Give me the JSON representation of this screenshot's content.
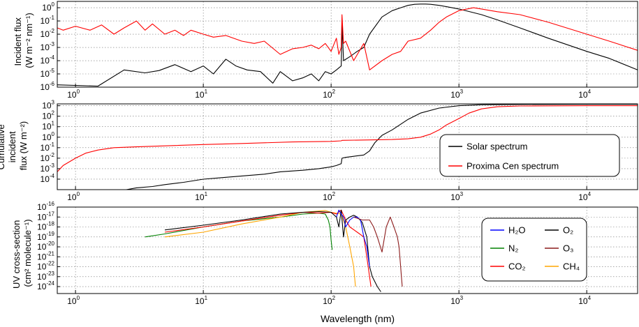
{
  "x_axis": {
    "label": "Wavelength (nm)",
    "scale": "log",
    "xlim": [
      0.72,
      25000
    ],
    "ticks": [
      1,
      10,
      100,
      1000,
      10000
    ],
    "tick_labels": [
      {
        "base": "10",
        "exp": "0"
      },
      {
        "base": "10",
        "exp": "1"
      },
      {
        "base": "10",
        "exp": "2"
      },
      {
        "base": "10",
        "exp": "3"
      },
      {
        "base": "10",
        "exp": "4"
      }
    ]
  },
  "chart_data": [
    {
      "type": "line",
      "ylabel": [
        "Incident flux",
        "(W m⁻² nm⁻¹)"
      ],
      "yscale": "log",
      "ylim": [
        1e-06,
        3
      ],
      "grid": true,
      "yticks": [
        {
          "v": 1,
          "exp": "0"
        },
        {
          "v": 0.1,
          "exp": "-1"
        },
        {
          "v": 0.01,
          "exp": "-2"
        },
        {
          "v": 0.001,
          "exp": "-3"
        },
        {
          "v": 0.0001,
          "exp": "-4"
        },
        {
          "v": 1e-05,
          "exp": "-5"
        },
        {
          "v": 1e-06,
          "exp": "-6"
        }
      ],
      "series": [
        {
          "key": "solar",
          "color": "#000000",
          "x": [
            0.72,
            1.5,
            2.4,
            3.5,
            4.5,
            6,
            8,
            10,
            12,
            15,
            18,
            22,
            28,
            35,
            40,
            50,
            60,
            70,
            80,
            90,
            100,
            110,
            120,
            122,
            125,
            140,
            160,
            180,
            200,
            250,
            300,
            350,
            400,
            450,
            500,
            550,
            600,
            700,
            800,
            1000,
            1500,
            2000,
            3000,
            5000,
            10000,
            15000,
            25000
          ],
          "y": [
            1.5e-06,
            1.2e-06,
            2e-05,
            1.2e-05,
            1.8e-05,
            5e-05,
            1.5e-05,
            4e-05,
            1e-05,
            0.00013,
            4e-05,
            2e-05,
            1.5e-05,
            2e-06,
            1.5e-05,
            3e-06,
            5e-06,
            1e-05,
            3e-06,
            1.5e-05,
            1e-05,
            2e-05,
            4e-05,
            0.05,
            0.0001,
            0.0002,
            0.0005,
            0.001,
            0.01,
            0.2,
            0.6,
            1.0,
            1.5,
            1.8,
            1.9,
            1.9,
            1.8,
            1.5,
            1.2,
            0.8,
            0.3,
            0.12,
            0.03,
            0.005,
            0.0005,
            0.00015,
            2e-05
          ]
        },
        {
          "key": "proxima",
          "color": "#ff0000",
          "x": [
            0.72,
            0.8,
            1,
            1.3,
            1.6,
            2,
            2.4,
            3,
            3.5,
            4,
            5,
            6,
            7,
            8,
            10,
            12,
            15,
            20,
            25,
            30,
            40,
            50,
            60,
            70,
            80,
            90,
            100,
            110,
            115,
            120,
            121.6,
            125,
            130,
            150,
            180,
            200,
            250,
            300,
            350,
            400,
            500,
            600,
            700,
            800,
            1000,
            1300,
            1500,
            2000,
            3000,
            5000,
            10000,
            15000,
            25000
          ],
          "y": [
            0.03,
            0.02,
            0.04,
            0.02,
            0.05,
            0.01,
            0.03,
            0.1,
            0.02,
            0.06,
            0.01,
            0.02,
            0.008,
            0.02,
            0.01,
            0.006,
            0.008,
            0.003,
            0.002,
            0.003,
            0.0003,
            0.0008,
            0.001,
            0.0015,
            0.0008,
            0.002,
            0.0005,
            0.005,
            0.0003,
            0.001,
            0.3,
            0.002,
            0.003,
            0.0001,
            0.002,
            2e-05,
            0.0001,
            0.0003,
            0.0005,
            0.003,
            0.005,
            0.02,
            0.08,
            0.2,
            0.6,
            1.0,
            0.8,
            0.5,
            0.3,
            0.08,
            0.01,
            0.003,
            0.0006
          ]
        }
      ]
    },
    {
      "type": "line",
      "ylabel": [
        "Cumulative",
        "incident",
        "flux (W m⁻²)"
      ],
      "yscale": "log",
      "ylim": [
        1e-05,
        1500
      ],
      "grid": true,
      "yticks": [
        {
          "v": 1000,
          "exp": "3"
        },
        {
          "v": 100,
          "exp": "2"
        },
        {
          "v": 10,
          "exp": "1"
        },
        {
          "v": 1,
          "exp": "0"
        },
        {
          "v": 0.1,
          "exp": "-1"
        },
        {
          "v": 0.01,
          "exp": "-2"
        },
        {
          "v": 0.001,
          "exp": "-3"
        },
        {
          "v": 0.0001,
          "exp": "-4"
        }
      ],
      "legend": {
        "position": "center-right",
        "entries": [
          {
            "label": "Solar spectrum",
            "color": "#000000"
          },
          {
            "label": "Proxima Cen spectrum",
            "color": "#ff0000"
          }
        ]
      },
      "series": [
        {
          "key": "solar_cum",
          "color": "#000000",
          "x": [
            2.5,
            3,
            4,
            5,
            7,
            10,
            15,
            20,
            30,
            40,
            60,
            80,
            100,
            110,
            120,
            121.6,
            130,
            150,
            180,
            200,
            220,
            250,
            300,
            400,
            500,
            700,
            1000,
            1500,
            3000,
            10000,
            25000
          ],
          "y": [
            1e-05,
            1.5e-05,
            2e-05,
            3e-05,
            5e-05,
            0.0001,
            0.00015,
            0.0002,
            0.0003,
            0.0005,
            0.0007,
            0.001,
            0.0015,
            0.002,
            0.003,
            0.01,
            0.012,
            0.015,
            0.02,
            0.05,
            0.3,
            1.5,
            5,
            50,
            200,
            600,
            1000,
            1250,
            1330,
            1360,
            1361
          ]
        },
        {
          "key": "proxima_cum",
          "color": "#ff0000",
          "x": [
            0.72,
            0.8,
            1,
            1.2,
            1.5,
            2,
            3,
            5,
            10,
            20,
            50,
            100,
            120,
            121.6,
            200,
            300,
            400,
            500,
            600,
            700,
            800,
            1000,
            1200,
            1500,
            2000,
            3000,
            10000,
            25000
          ],
          "y": [
            0.0005,
            0.002,
            0.01,
            0.03,
            0.06,
            0.1,
            0.12,
            0.15,
            0.2,
            0.25,
            0.35,
            0.4,
            0.45,
            0.5,
            0.55,
            0.6,
            0.7,
            1.0,
            2,
            5,
            15,
            60,
            200,
            500,
            800,
            950,
            1000,
            1000
          ]
        }
      ]
    },
    {
      "type": "line",
      "ylabel": [
        "UV cross-section",
        "(cm² molecule⁻¹)"
      ],
      "yscale": "log",
      "ylim": [
        2e-25,
        1e-16
      ],
      "grid": true,
      "yticks": [
        {
          "v": 1e-16,
          "exp": "-16"
        },
        {
          "v": 1e-17,
          "exp": "-17"
        },
        {
          "v": 1e-18,
          "exp": "-18"
        },
        {
          "v": 1e-19,
          "exp": "-19"
        },
        {
          "v": 1e-20,
          "exp": "-20"
        },
        {
          "v": 1e-21,
          "exp": "-21"
        },
        {
          "v": 1e-22,
          "exp": "-22"
        },
        {
          "v": 1e-23,
          "exp": "-23"
        },
        {
          "v": 1e-24,
          "exp": "-24"
        }
      ],
      "legend": {
        "position": "right",
        "entries": [
          {
            "label": "H₂O",
            "color": "#0000ff"
          },
          {
            "label": "O₂",
            "color": "#000000"
          },
          {
            "label": "N₂",
            "color": "#008000"
          },
          {
            "label": "O₃",
            "color": "#8b1a1a"
          },
          {
            "label": "CO₂",
            "color": "#ff0000"
          },
          {
            "label": "CH₄",
            "color": "#ffa500"
          }
        ]
      },
      "series": [
        {
          "key": "N2",
          "color": "#008000",
          "x": [
            3.5,
            5,
            10,
            20,
            40,
            60,
            80,
            90,
            95,
            98,
            100,
            102
          ],
          "y": [
            1e-19,
            2e-19,
            1e-18,
            4e-18,
            1e-17,
            2e-17,
            2.5e-17,
            2e-17,
            5e-18,
            1e-18,
            5e-20,
            5e-21
          ]
        },
        {
          "key": "CH4",
          "color": "#ffa500",
          "x": [
            5,
            10,
            20,
            40,
            60,
            80,
            90,
            100,
            120,
            130,
            140,
            150,
            155
          ],
          "y": [
            1e-19,
            3e-19,
            2e-18,
            1e-17,
            3e-17,
            4e-17,
            4.5e-17,
            3e-17,
            2e-17,
            1e-18,
            1e-20,
            1e-22,
            1e-24
          ]
        },
        {
          "key": "CO2",
          "color": "#ff0000",
          "x": [
            5,
            10,
            20,
            40,
            60,
            80,
            100,
            110,
            120,
            130,
            140,
            160,
            180,
            190,
            200,
            205
          ],
          "y": [
            3e-19,
            1e-18,
            4e-18,
            1.5e-17,
            3e-17,
            2.5e-17,
            3e-17,
            2e-17,
            5e-17,
            5e-18,
            1e-18,
            3e-19,
            1e-19,
            1e-21,
            1e-23,
            1e-24
          ]
        },
        {
          "key": "O2",
          "color": "#000000",
          "x": [
            5,
            10,
            20,
            40,
            60,
            80,
            100,
            110,
            115,
            120,
            125,
            130,
            140,
            150,
            160,
            175,
            190,
            200,
            210,
            230,
            245
          ],
          "y": [
            5e-19,
            1.5e-18,
            5e-18,
            2e-17,
            3e-17,
            3.5e-17,
            3e-17,
            1e-17,
            1e-18,
            5e-17,
            1e-19,
            5e-18,
            1e-17,
            1.5e-17,
            1e-17,
            3e-18,
            1e-19,
            1e-22,
            1e-23,
            1e-24,
            3e-25
          ]
        },
        {
          "key": "H2O",
          "color": "#0000ff",
          "x": [
            110,
            115,
            120,
            125,
            130,
            140,
            150,
            160,
            170,
            180,
            190,
            195,
            200
          ],
          "y": [
            1e-17,
            5e-17,
            2e-17,
            1e-17,
            1e-18,
            5e-18,
            1e-17,
            1e-17,
            5e-18,
            1e-19,
            1e-20,
            1e-21,
            1e-22
          ]
        },
        {
          "key": "O3",
          "color": "#8b1a1a",
          "x": [
            150,
            175,
            200,
            215,
            230,
            250,
            270,
            290,
            310,
            330,
            340,
            350,
            355,
            360
          ],
          "y": [
            1e-17,
            5e-18,
            5e-18,
            1e-18,
            1e-19,
            3e-21,
            1e-18,
            1e-17,
            1e-18,
            1e-19,
            1e-20,
            1e-22,
            1e-23,
            1e-24
          ]
        }
      ]
    }
  ]
}
